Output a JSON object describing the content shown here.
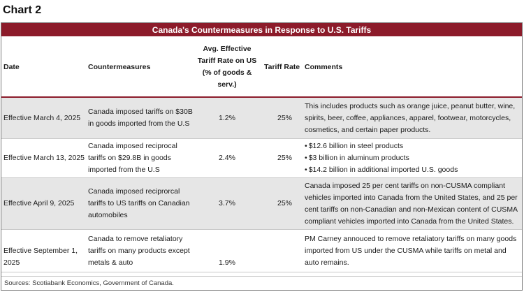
{
  "chart_label": "Chart 2",
  "table_title": "Canada's Countermeasures in Response to U.S. Tariffs",
  "headers": {
    "date": "Date",
    "countermeasures": "Countermeasures",
    "avg_rate_l1": "Avg. Effective",
    "avg_rate_l2": "Tariff Rate on US",
    "avg_rate_l3": "(% of goods & serv.)",
    "tariff_rate": "Tariff Rate",
    "comments": "Comments"
  },
  "rows": [
    {
      "date": "Effective March 4, 2025",
      "countermeasure": "Canada imposed tariffs on $30B in goods imported from the U.S",
      "avg_rate": "1.2%",
      "tariff_rate": "25%",
      "comments": "This includes products such as orange juice, peanut butter, wine, spirits, beer, coffee, appliances, apparel, footwear, motorcycles, cosmetics, and certain paper products."
    },
    {
      "date": "Effective March 13, 2025",
      "countermeasure": "Canada imposed reciprocal tariffs on $29.8B in goods imported from the U.S",
      "avg_rate": "2.4%",
      "tariff_rate": "25%",
      "comments_bullets": [
        "$12.6 billion in steel products",
        "$3 billion in aluminum products",
        "$14.2 billion in additional imported U.S. goods"
      ]
    },
    {
      "date": "Effective April 9, 2025",
      "countermeasure": "Canada imposed reciprorcal tariffs to US tariffs on Canadian automobiles",
      "avg_rate": "3.7%",
      "tariff_rate": "25%",
      "comments": "Canada imposed 25 per cent tariffs on non-CUSMA compliant vehicles imported into Canada from the United States, and 25 per cent tariffs on non-Canadian and non-Mexican content of CUSMA compliant vehicles imported into Canada from the United States."
    },
    {
      "date": "Effective September 1, 2025",
      "countermeasure": "Canada to remove retaliatory tariffs on many products except metals & auto",
      "avg_rate": "1.9%",
      "tariff_rate": "",
      "comments": "PM Carney annouced to remove retaliatory tariffs on many goods imported from US under the CUSMA while tariffs on metal and auto remains."
    }
  ],
  "source": "Sources: Scotiabank Economics, Government of Canada.",
  "colors": {
    "title_bar": "#8c1b2a",
    "row_shade": "#e6e6e6"
  }
}
